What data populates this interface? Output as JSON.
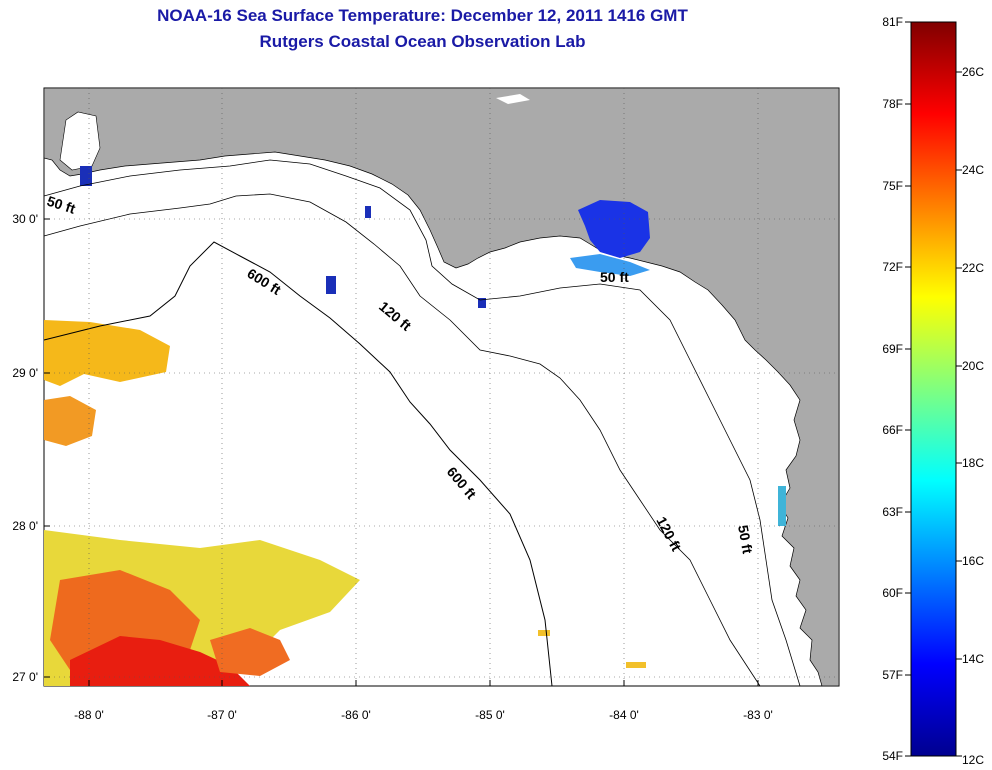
{
  "title": "NOAA-16 Sea Surface Temperature:  December 12, 2011 1416 GMT",
  "subtitle": "Rutgers Coastal Ocean Observation Lab",
  "map": {
    "lon_ticks": [
      "-88 0'",
      "-87 0'",
      "-86 0'",
      "-85 0'",
      "-84 0'",
      "-83 0'"
    ],
    "lat_ticks": [
      "30 0'",
      "29 0'",
      "28 0'",
      "27 0'"
    ],
    "depth_labels": [
      "50 ft",
      "600 ft",
      "120 ft",
      "50 ft",
      "600 ft",
      "120 ft",
      "50 ft"
    ],
    "land_color": "#aaaaaa",
    "ocean_color": "#ffffff"
  },
  "colorbar": {
    "fahrenheit_labels": [
      "81F",
      "78F",
      "75F",
      "72F",
      "69F",
      "66F",
      "63F",
      "60F",
      "57F",
      "54F"
    ],
    "celsius_labels": [
      "26C",
      "24C",
      "22C",
      "20C",
      "18C",
      "16C",
      "14C",
      "12C"
    ]
  }
}
